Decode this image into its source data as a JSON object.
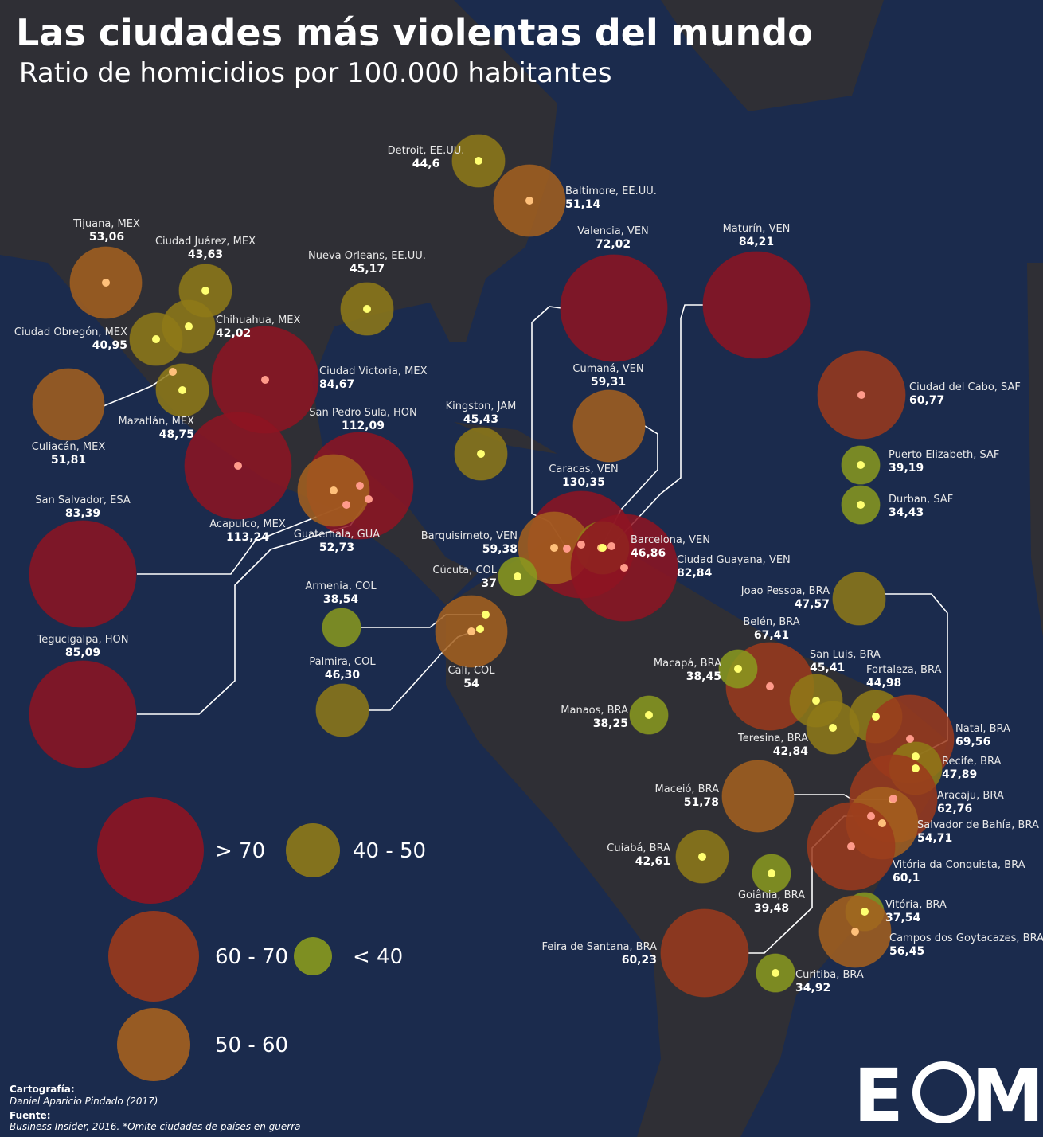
{
  "title": "Las ciudades más violentas del mundo",
  "subtitle": "Ratio de homicidios por 100.000 habitantes",
  "cities": [
    {
      "name": "Detroit, EE.UU.",
      "value": {
        "value": 44.6,
        "label": "44,6"
      }
    },
    {
      "name": "Baltimore, EE.UU.",
      "value": {
        "value": 51.14,
        "label": "51,14"
      }
    },
    {
      "name": "Tijuana, MEX",
      "value": {
        "value": 53.06,
        "label": "53,06"
      }
    },
    {
      "name": "Ciudad Juárez, MEX",
      "value": {
        "value": 43.63,
        "label": "43,63"
      }
    },
    {
      "name": "Nueva Orleans, EE.UU.",
      "value": {
        "value": 45.17,
        "label": "45,17"
      }
    },
    {
      "name": "Chihuahua, MEX",
      "value": {
        "value": 42.02,
        "label": "42,02"
      }
    },
    {
      "name": "Ciudad Obregón, MEX",
      "value": {
        "value": 40.95,
        "label": "40,95"
      }
    },
    {
      "name": "Ciudad Victoria, MEX",
      "value": {
        "value": 84.67,
        "label": "84,67"
      }
    },
    {
      "name": "Culiacán, MEX",
      "value": {
        "value": 51.81,
        "label": "51,81"
      }
    },
    {
      "name": "Mazatlán, MEX",
      "value": {
        "value": 48.75,
        "label": "48,75"
      }
    },
    {
      "name": "San Pedro Sula, HON",
      "value": {
        "value": 112.09,
        "label": "112,09"
      }
    },
    {
      "name": "Acapulco, MEX",
      "value": {
        "value": 113.24,
        "label": "113,24"
      }
    },
    {
      "name": "Guatemala, GUA",
      "value": {
        "value": 52.73,
        "label": "52,73"
      }
    },
    {
      "name": "San Salvador, ESA",
      "value": {
        "value": 83.39,
        "label": "83,39"
      }
    },
    {
      "name": "Tegucigalpa, HON",
      "value": {
        "value": 85.09,
        "label": "85,09"
      }
    },
    {
      "name": "Kingston, JAM",
      "value": {
        "value": 45.43,
        "label": "45,43"
      }
    },
    {
      "name": "Valencia, VEN",
      "value": {
        "value": 72.02,
        "label": "72,02"
      }
    },
    {
      "name": "Maturín, VEN",
      "value": {
        "value": 84.21,
        "label": "84,21"
      }
    },
    {
      "name": "Cumaná, VEN",
      "value": {
        "value": 59.31,
        "label": "59,31"
      }
    },
    {
      "name": "Caracas, VEN",
      "value": {
        "value": 130.35,
        "label": "130,35"
      }
    },
    {
      "name": "Barquisimeto, VEN",
      "value": {
        "value": 59.38,
        "label": "59,38"
      }
    },
    {
      "name": "Barcelona, VEN",
      "value": {
        "value": 46.86,
        "label": "46,86"
      }
    },
    {
      "name": "Ciudad Guayana, VEN",
      "value": {
        "value": 82.84,
        "label": "82,84"
      }
    },
    {
      "name": "Cúcuta, COL",
      "value": 37
    },
    {
      "name": "Armenia, COL",
      "value": {
        "value": 38.54,
        "label": "38,54"
      }
    },
    {
      "name": "Cali, COL",
      "value": 54
    },
    {
      "name": "Palmira, COL",
      "value": {
        "value": 46.3,
        "label": "46,30"
      }
    },
    {
      "name": "Ciudad del Cabo, SAF",
      "value": {
        "value": 60.77,
        "label": "60,77"
      }
    },
    {
      "name": "Puerto Elizabeth, SAF",
      "value": {
        "value": 39.19,
        "label": "39,19"
      }
    },
    {
      "name": "Durban, SAF",
      "value": {
        "value": 34.43,
        "label": "34,43"
      }
    },
    {
      "name": "Joao Pessoa, BRA",
      "value": {
        "value": 47.57,
        "label": "47,57"
      }
    },
    {
      "name": "Belén, BRA",
      "value": {
        "value": 67.41,
        "label": "67,41"
      }
    },
    {
      "name": "Macapá, BRA",
      "value": {
        "value": 38.45,
        "label": "38,45"
      }
    },
    {
      "name": "San Luis, BRA",
      "value": {
        "value": 45.41,
        "label": "45,41"
      }
    },
    {
      "name": "Fortaleza, BRA",
      "value": {
        "value": 44.98,
        "label": "44,98"
      }
    },
    {
      "name": "Teresina, BRA",
      "value": {
        "value": 42.84,
        "label": "42,84"
      }
    },
    {
      "name": "Manaos, BRA",
      "value": {
        "value": 38.25,
        "label": "38,25"
      }
    },
    {
      "name": "Natal, BRA",
      "value": {
        "value": 69.56,
        "label": "69,56"
      }
    },
    {
      "name": "Recife, BRA",
      "value": {
        "value": 47.89,
        "label": "47,89"
      }
    },
    {
      "name": "Maceió, BRA",
      "value": {
        "value": 51.78,
        "label": "51,78"
      }
    },
    {
      "name": "Aracaju, BRA",
      "value": {
        "value": 62.76,
        "label": "62,76"
      }
    },
    {
      "name": "Salvador de Bahía, BRA",
      "value": {
        "value": 54.71,
        "label": "54,71"
      }
    },
    {
      "name": "Vitória da Conquista, BRA",
      "value": {
        "value": 60.1,
        "label": "60,1"
      }
    },
    {
      "name": "Cuiabá, BRA",
      "value": {
        "value": 42.61,
        "label": "42,61"
      }
    },
    {
      "name": "Goiânia, BRA",
      "value": {
        "value": 39.48,
        "label": "39,48"
      }
    },
    {
      "name": "Vitória, BRA",
      "value": {
        "value": 37.54,
        "label": "37,54"
      }
    },
    {
      "name": "Campos dos Goytacazes, BRA",
      "value": {
        "value": 56.45,
        "label": "56,45"
      }
    },
    {
      "name": "Feira de Santana, BRA",
      "value": {
        "value": 60.23,
        "label": "60,23"
      }
    },
    {
      "name": "Curitiba, BRA",
      "value": {
        "value": 34.92,
        "label": "34,92"
      }
    }
  ],
  "legend": [
    "> 70",
    "60 - 70",
    "50 - 60",
    "40 - 50",
    "< 40"
  ],
  "credits": {
    "cartography_label": "Cartografía:",
    "cartography": "Daniel Aparicio Pindado (2017)",
    "source_label": "Fuente:",
    "source": "Business Insider, 2016. *Omite ciudades de países en guerra"
  },
  "logo": [
    "E",
    "M"
  ]
}
